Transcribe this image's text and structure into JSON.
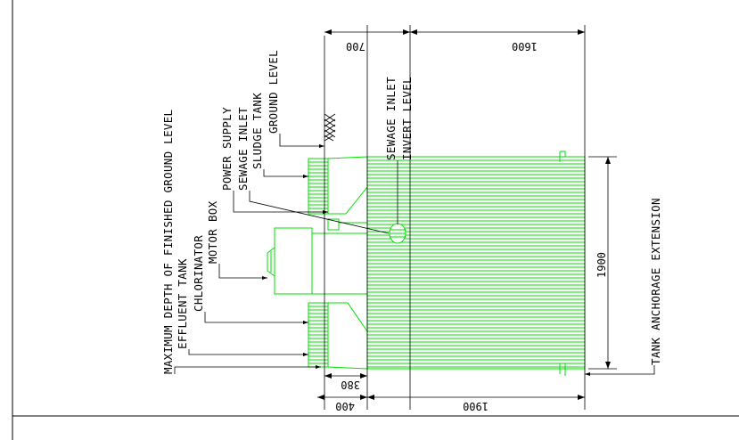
{
  "labels": {
    "max_depth": "MAXIMUM DEPTH OF FINISHED GROUND LEVEL",
    "effluent_tank": "EFFLUENT TANK",
    "chlorinator": "CHLORINATOR",
    "motor_box": "MOTOR BOX",
    "power_supply": "POWER SUPPLY",
    "sewage_inlet": "SEWAGE INLET",
    "sludge_tank": "SLUDGE TANK",
    "ground_level": "GROUND LEVEL",
    "sewage_inlet_2": "SEWAGE INLET",
    "invert_level": "INVERT LEVEL",
    "tank_anchorage": "TANK ANCHORAGE EXTENSION"
  },
  "dimensions": {
    "top_700": "700",
    "top_1600": "1600",
    "right_1900": "1900",
    "bottom_380": "380",
    "bottom_400": "400",
    "bottom_1900": "1900"
  },
  "colors": {
    "tank_outline": "#00dd00",
    "annotation": "#000000"
  }
}
